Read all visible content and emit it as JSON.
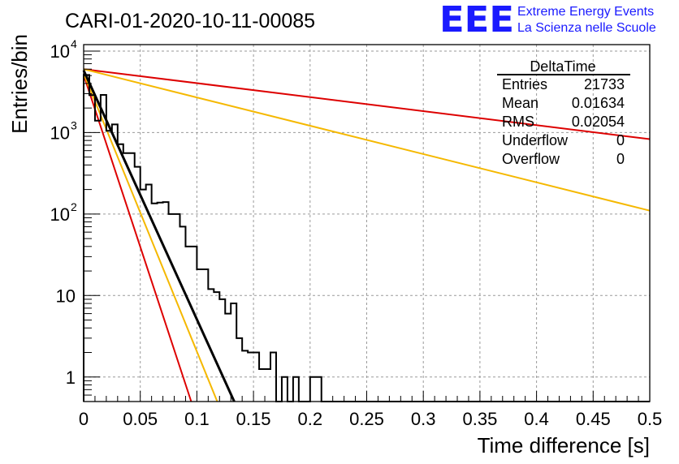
{
  "header": {
    "title": "CARI-01-2020-10-11-00085",
    "logo_text": "EEE",
    "logo_line1": "Extreme Energy Events",
    "logo_line2": "La Scienza nelle Scuole"
  },
  "stats": {
    "title": "DeltaTime",
    "rows": [
      {
        "label": "Entries",
        "value": "21733"
      },
      {
        "label": "Mean",
        "value": "0.01634"
      },
      {
        "label": "RMS",
        "value": "0.02054"
      },
      {
        "label": "Underflow",
        "value": "0"
      },
      {
        "label": "Overflow",
        "value": "0"
      }
    ]
  },
  "colors": {
    "histogram": "#000000",
    "red": "#dd0000",
    "orange": "#f5b800",
    "black_fit": "#000000",
    "grid": "#9a9a9a"
  },
  "chart_data": {
    "type": "line",
    "title": "CARI-01-2020-10-11-00085",
    "xlabel": "Time difference [s]",
    "ylabel": "Entries/bin",
    "xlim": [
      0,
      0.5
    ],
    "ylim": [
      0.5,
      12000
    ],
    "yscale": "log",
    "grid": true,
    "x_ticks": [
      "0",
      "0.05",
      "0.1",
      "0.15",
      "0.2",
      "0.25",
      "0.3",
      "0.35",
      "0.4",
      "0.45",
      "0.5"
    ],
    "y_ticks": [
      {
        "value": 1,
        "label": "1"
      },
      {
        "value": 10,
        "label": "10"
      },
      {
        "value": 100,
        "label": "10",
        "exp": "2"
      },
      {
        "value": 1000,
        "label": "10",
        "exp": "3"
      },
      {
        "value": 10000,
        "label": "10",
        "exp": "4"
      }
    ],
    "histogram": {
      "bin_width": 0.005,
      "x_start": 0,
      "values": [
        5100,
        2880,
        1400,
        2900,
        1050,
        1260,
        720,
        560,
        560,
        380,
        200,
        230,
        135,
        138,
        140,
        100,
        100,
        70,
        40,
        40,
        21,
        21,
        12,
        11,
        9,
        6,
        8,
        3,
        2.1,
        2,
        2,
        1.25,
        1.25,
        2,
        0.4,
        1,
        0.4,
        1,
        0.4,
        0.4,
        1,
        1,
        0.4,
        0.4,
        0.4,
        0.4,
        0.4,
        0.4,
        0.4,
        0.4,
        0.4,
        0.4,
        0.4,
        0.4,
        0.4,
        0.4,
        0.4,
        0.4,
        0.4,
        0.4,
        0.4,
        0.4,
        0.4,
        0.4,
        0.4,
        0.4,
        0.4,
        0.4,
        0.4,
        0.4,
        0.4,
        0.4,
        0.4,
        0.4,
        0.4,
        0.4,
        0.4,
        0.4,
        0.4,
        0.4,
        0.4,
        0.4,
        0.4,
        0.4,
        0.4,
        0.4,
        0.4,
        0.4,
        0.4,
        0.4,
        0.4,
        0.4,
        0.4,
        0.4,
        0.4,
        0.4,
        0.4,
        0.4,
        0.4,
        0.4
      ]
    },
    "curves": [
      {
        "color": "red",
        "points": [
          [
            0,
            6000
          ],
          [
            0.5,
            830
          ]
        ]
      },
      {
        "color": "orange",
        "points": [
          [
            0,
            6000
          ],
          [
            0.5,
            110
          ]
        ]
      },
      {
        "color": "red",
        "points": [
          [
            0,
            5100
          ],
          [
            0.095,
            0.5
          ]
        ]
      },
      {
        "color": "orange",
        "points": [
          [
            0,
            5300
          ],
          [
            0.118,
            0.5
          ]
        ]
      },
      {
        "color": "black_fit",
        "points": [
          [
            0,
            5800
          ],
          [
            0.133,
            0.5
          ]
        ]
      }
    ]
  }
}
